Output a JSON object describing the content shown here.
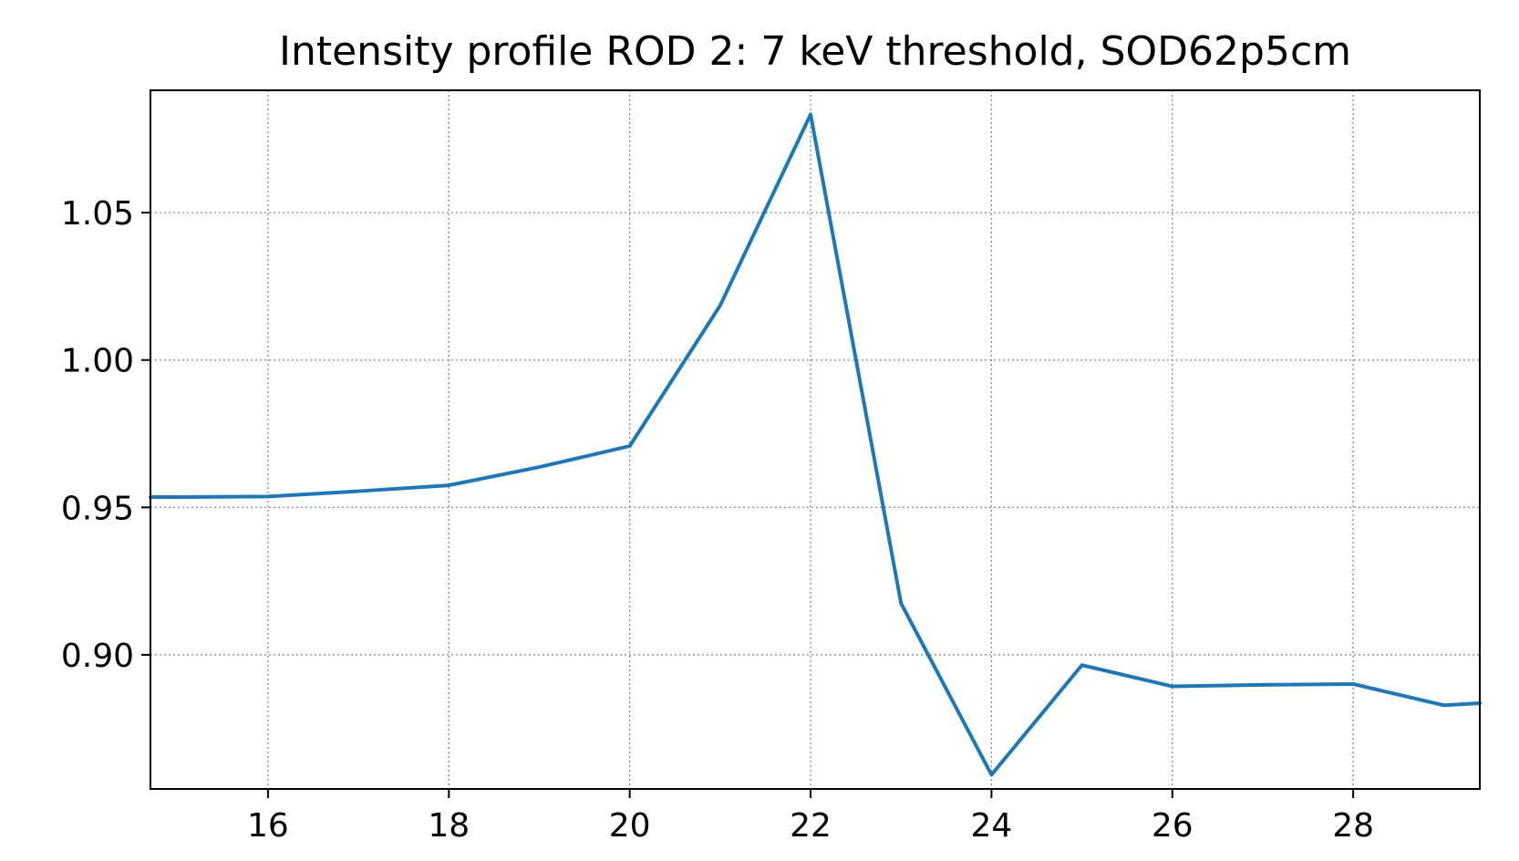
{
  "chart_data": {
    "type": "line",
    "title": "Intensity profile ROD 2: 7 keV threshold, SOD62p5cm",
    "xlabel": "",
    "ylabel": "",
    "xlim": [
      14.7,
      29.4
    ],
    "ylim": [
      0.8545,
      1.0915
    ],
    "x_ticks": [
      16,
      18,
      20,
      22,
      24,
      26,
      28
    ],
    "x_tick_labels": [
      "16",
      "18",
      "20",
      "22",
      "24",
      "26",
      "28"
    ],
    "y_ticks": [
      0.9,
      0.95,
      1.0,
      1.05
    ],
    "y_tick_labels": [
      "0.90",
      "0.95",
      "1.00",
      "1.05"
    ],
    "grid": true,
    "series": [
      {
        "color": "#1f77b4",
        "x": [
          14.7,
          15,
          16,
          17,
          18,
          19,
          20,
          21,
          22,
          23,
          24,
          25,
          26,
          27,
          28,
          29,
          29.4
        ],
        "y": [
          0.9535,
          0.9535,
          0.9537,
          0.9555,
          0.9575,
          0.9637,
          0.9708,
          1.0185,
          1.0833,
          0.9175,
          0.8593,
          0.8965,
          0.8893,
          0.8898,
          0.8901,
          0.8829,
          0.8836
        ]
      }
    ]
  }
}
